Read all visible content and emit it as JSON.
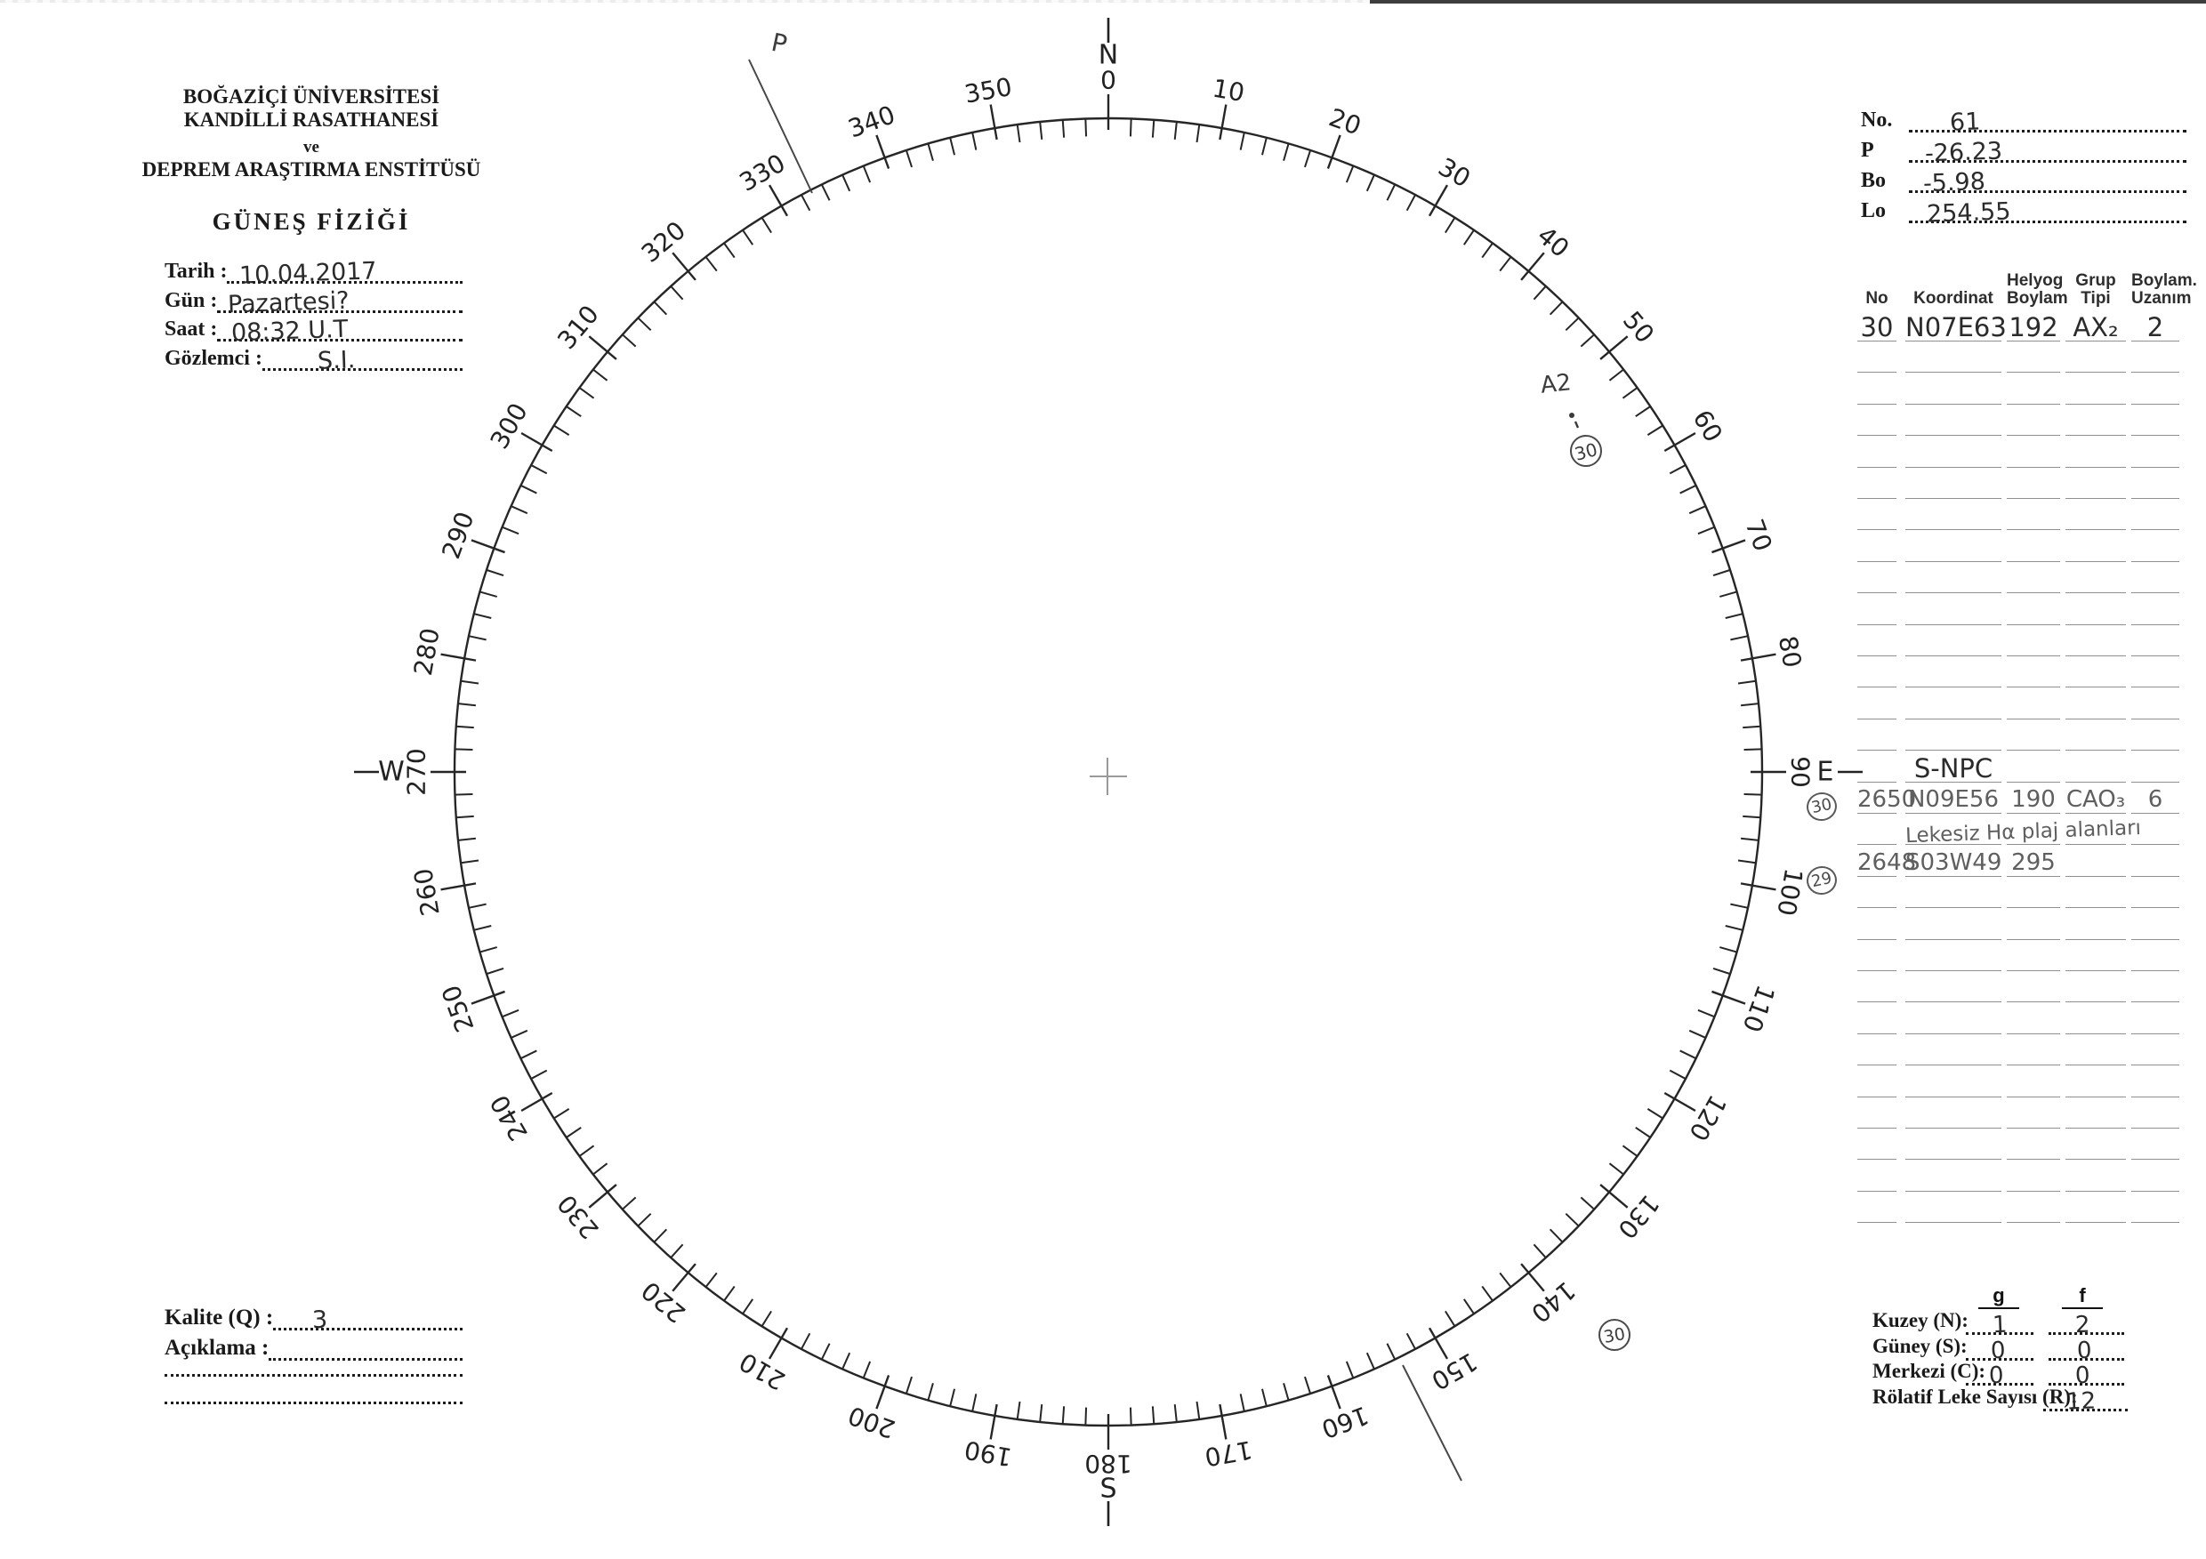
{
  "form": {
    "org_line1": "BOĞAZİÇİ ÜNİVERSİTESİ",
    "org_line2": "KANDİLLİ RASATHANESİ",
    "org_line3": "ve",
    "org_line4": "DEPREM ARAŞTIRMA ENSTİTÜSÜ",
    "title": "GÜNEŞ FİZİĞİ",
    "fields": [
      {
        "label": "Tarih :",
        "value": "10.04.2017"
      },
      {
        "label": "Gün :",
        "value": "Pazartesi?"
      },
      {
        "label": "Saat :",
        "value": "08:32 U.T"
      },
      {
        "label": "Gözlemci :",
        "value": "S.I."
      }
    ]
  },
  "ephemeris": {
    "rows": [
      {
        "label": "No.",
        "value": "61"
      },
      {
        "label": "P",
        "value": "-26.23"
      },
      {
        "label": "Bo",
        "value": "-5.98"
      },
      {
        "label": "Lo",
        "value": "254.55"
      }
    ]
  },
  "table": {
    "headers": [
      "No",
      "Koordinat",
      "Helyog\nBoylam",
      "Grup\nTipi",
      "Boylam.\nUzanım"
    ],
    "row_count": 29,
    "entries": [
      {
        "row": 0,
        "ink": "pen",
        "cells": [
          "30",
          "N07E63",
          "192",
          "AX₂",
          "2"
        ]
      },
      {
        "row": 14,
        "ink": "pen",
        "cells": [
          "",
          "S-NPC",
          "",
          "",
          ""
        ]
      },
      {
        "row": 15,
        "ink": "pencil",
        "margin": "30",
        "margin_dy": -7,
        "cells": [
          "2650",
          "N09E56",
          "190",
          "CAO₃",
          "6"
        ]
      },
      {
        "row": 16,
        "ink": "pencil",
        "note": "Lekesiz Hα plaj alanları"
      },
      {
        "row": 17,
        "ink": "pencil",
        "margin": "29",
        "margin_dy": 5,
        "cells": [
          "2648",
          "S03W49",
          "295",
          "",
          ""
        ]
      }
    ]
  },
  "counts": {
    "col_g": "g",
    "col_f": "f",
    "rows": [
      {
        "label": "Kuzey (N):",
        "g": "1",
        "f": "2"
      },
      {
        "label": "Güney (S):",
        "g": "0",
        "f": "0"
      },
      {
        "label": "Merkezi (C):",
        "g": "0",
        "f": "0"
      }
    ],
    "relative_label": "Rölatif Leke Sayısı (R):",
    "relative_value": "12"
  },
  "quality": {
    "label": "Kalite (Q) :",
    "value": "3",
    "desc_label": "Açıklama :"
  },
  "circle": {
    "degree_labels": [
      "0",
      "10",
      "20",
      "30",
      "40",
      "50",
      "60",
      "70",
      "80",
      "90",
      "100",
      "110",
      "120",
      "130",
      "140",
      "150",
      "160",
      "170",
      "180",
      "190",
      "200",
      "210",
      "220",
      "230",
      "240",
      "250",
      "260",
      "270",
      "280",
      "290",
      "300",
      "310",
      "320",
      "330",
      "340",
      "350"
    ],
    "cardinals": {
      "n": "N",
      "e": "E",
      "s": "S",
      "w": "W"
    },
    "annotations": {
      "p_label": "P",
      "a2_label": "A2",
      "group_upper": "30",
      "group_lower": "30"
    }
  }
}
